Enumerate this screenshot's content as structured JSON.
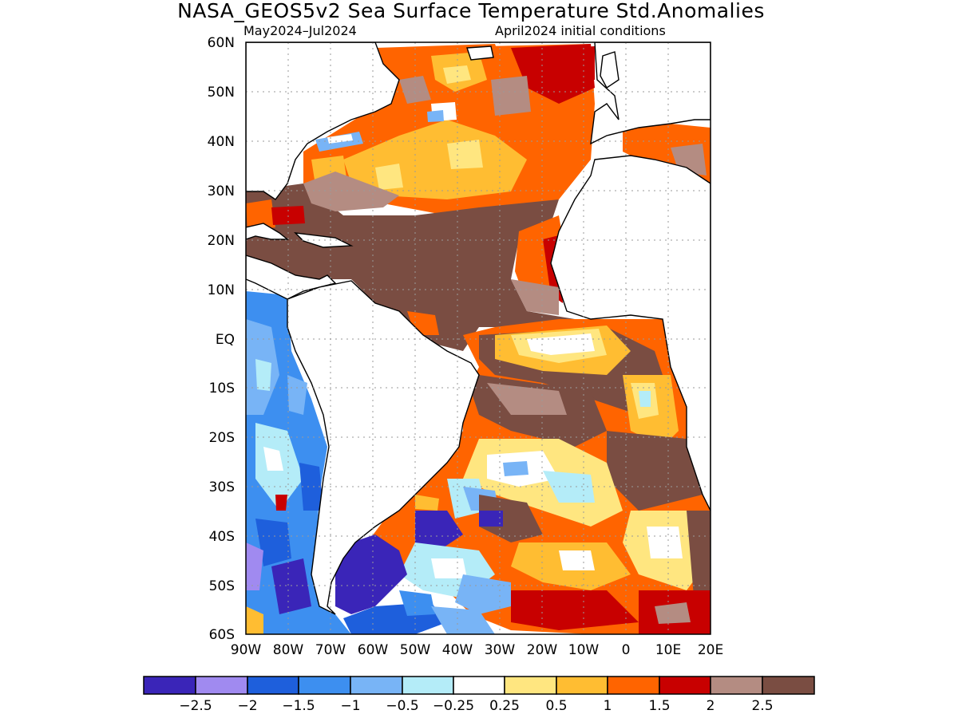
{
  "title": "NASA_GEOS5v2 Sea Surface Temperature Std.Anomalies",
  "subtitle_left": "May2024–Jul2024",
  "subtitle_right": "April2024 initial conditions",
  "map": {
    "lat_labels": [
      "60N",
      "50N",
      "40N",
      "30N",
      "20N",
      "10N",
      "EQ",
      "10S",
      "20S",
      "30S",
      "40S",
      "50S",
      "60S"
    ],
    "lon_labels": [
      "90W",
      "80W",
      "70W",
      "60W",
      "50W",
      "40W",
      "30W",
      "20W",
      "10W",
      "0",
      "10E",
      "20E"
    ],
    "lat_range": [
      -60,
      60
    ],
    "lon_range": [
      -90,
      20
    ],
    "grid": true,
    "region": "Atlantic Ocean"
  },
  "colorbar": {
    "colors": [
      "#3a25b8",
      "#a08af0",
      "#1e5fdc",
      "#3d8ff0",
      "#78b4f6",
      "#b4ecf8",
      "#ffffff",
      "#ffe680",
      "#ffbd32",
      "#ff6400",
      "#c80000",
      "#b48c82",
      "#7a4d42"
    ],
    "labels": [
      "−2.5",
      "−2",
      "−1.5",
      "−1",
      "−0.5",
      "−0.25",
      "0.25",
      "0.5",
      "1",
      "1.5",
      "2",
      "2.5"
    ]
  }
}
